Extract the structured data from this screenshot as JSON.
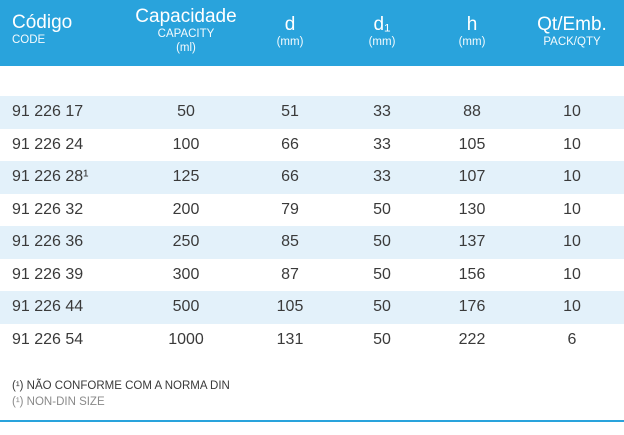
{
  "header": {
    "code": {
      "main": "Código",
      "sub": "CODE"
    },
    "capacity": {
      "main": "Capacidade",
      "sub1": "CAPACITY",
      "sub2": "(ml)"
    },
    "d": {
      "main": "d",
      "sub": "(mm)"
    },
    "d1": {
      "main": "d₁",
      "sub": "(mm)"
    },
    "h": {
      "main": "h",
      "sub": "(mm)"
    },
    "qt": {
      "main": "Qt/Emb.",
      "sub": "PACK/QTY"
    }
  },
  "rows": [
    {
      "code": "91 226 17",
      "cap": "50",
      "d": "51",
      "d1": "33",
      "h": "88",
      "qt": "10"
    },
    {
      "code": "91 226 24",
      "cap": "100",
      "d": "66",
      "d1": "33",
      "h": "105",
      "qt": "10"
    },
    {
      "code": "91 226 28¹",
      "cap": "125",
      "d": "66",
      "d1": "33",
      "h": "107",
      "qt": "10"
    },
    {
      "code": "91 226 32",
      "cap": "200",
      "d": "79",
      "d1": "50",
      "h": "130",
      "qt": "10"
    },
    {
      "code": "91 226 36",
      "cap": "250",
      "d": "85",
      "d1": "50",
      "h": "137",
      "qt": "10"
    },
    {
      "code": "91 226 39",
      "cap": "300",
      "d": "87",
      "d1": "50",
      "h": "156",
      "qt": "10"
    },
    {
      "code": "91 226 44",
      "cap": "500",
      "d": "105",
      "d1": "50",
      "h": "176",
      "qt": "10"
    },
    {
      "code": "91 226 54",
      "cap": "1000",
      "d": "131",
      "d1": "50",
      "h": "222",
      "qt": "6"
    }
  ],
  "footnotes": {
    "pt": "(¹) NÃO CONFORME COM A NORMA DIN",
    "en": "(¹) NON-DIN SIZE"
  },
  "colors": {
    "header": "#29a3dc",
    "stripe": "#e3f1fa"
  }
}
